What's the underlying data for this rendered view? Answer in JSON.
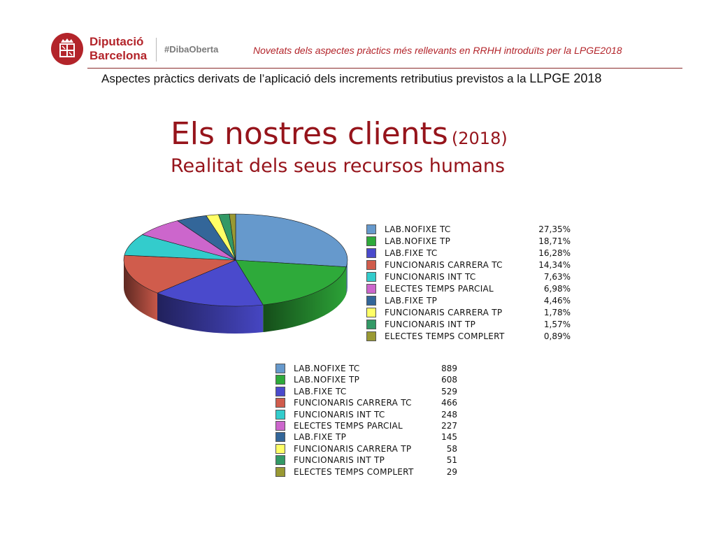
{
  "header": {
    "brand_line1": "Diputació",
    "brand_line2": "Barcelona",
    "hashtag": "#DibaOberta",
    "tagline": "Novetats dels aspectes pràctics més rellevants en RRHH introduïts per la LPGE2018",
    "subtitle": "Aspectes pràctics derivats de l’aplicació dels increments retributius previstos a la",
    "subtitle_suffix": "LLPGE 2018",
    "logo_icon": "diputacio-barcelona-crest-icon",
    "brand_color": "#b3242a"
  },
  "title": {
    "main": "Els nostres clients",
    "year": "(2018)",
    "sub": "Realitat dels seus recursos humans"
  },
  "chart_data": {
    "type": "pie",
    "categories": [
      "LAB.NOFIXE TC",
      "LAB.NOFIXE TP",
      "LAB.FIXE TC",
      "FUNCIONARIS CARRERA TC",
      "FUNCIONARIS INT TC",
      "ELECTES TEMPS PARCIAL",
      "LAB.FIXE TP",
      "FUNCIONARIS CARRERA TP",
      "FUNCIONARIS INT TP",
      "ELECTES TEMPS COMPLERT"
    ],
    "percent_labels": [
      "27,35%",
      "18,71%",
      "16,28%",
      "14,34%",
      "7,63%",
      "6,98%",
      "4,46%",
      "1,78%",
      "1,57%",
      "0,89%"
    ],
    "values": [
      889,
      608,
      529,
      466,
      248,
      227,
      145,
      58,
      51,
      29
    ],
    "colors": [
      "#6699cc",
      "#2eaa3a",
      "#4a4acc",
      "#d05c4c",
      "#33cccc",
      "#cc66cc",
      "#336699",
      "#ffff66",
      "#339966",
      "#999933"
    ],
    "legend_position": "right",
    "three_d": true
  }
}
